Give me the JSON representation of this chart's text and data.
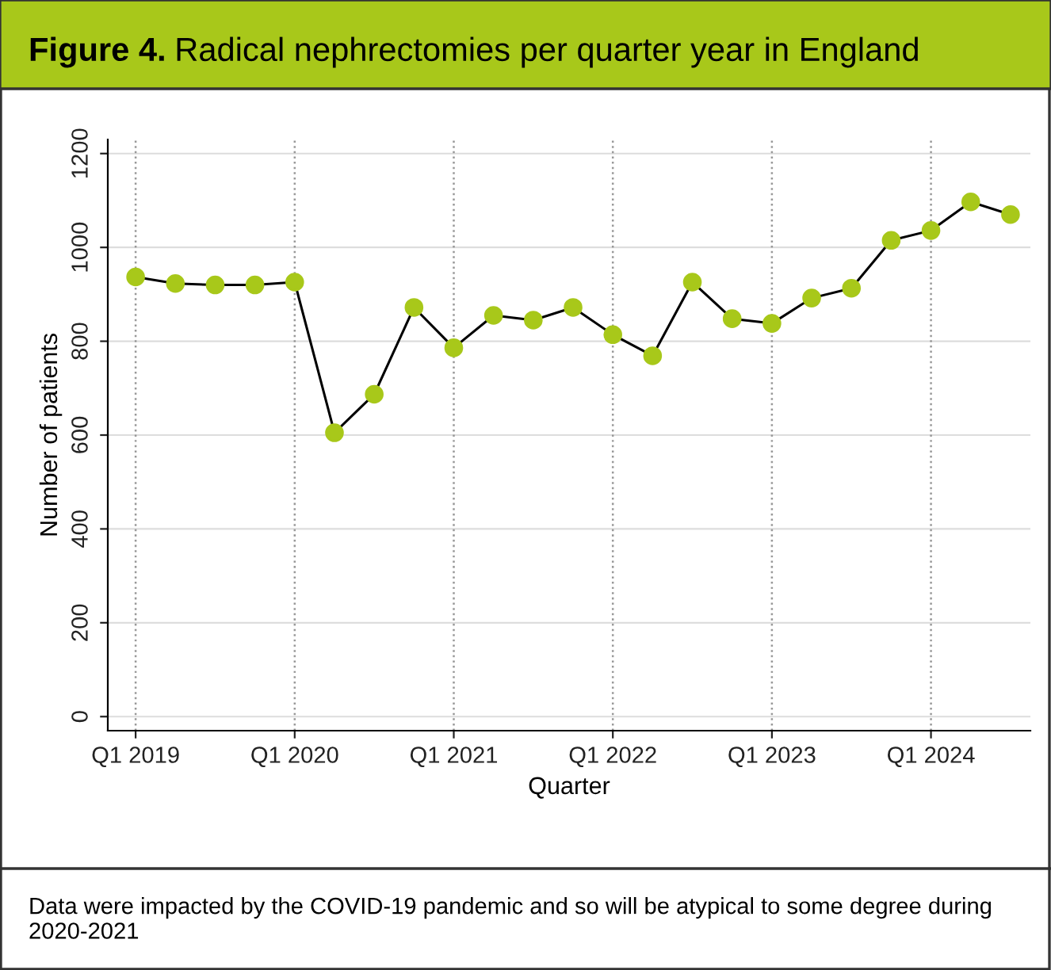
{
  "chart_data": {
    "type": "line",
    "title": "Figure 4. Radical nephrectomies per quarter year in England",
    "xlabel": "Quarter",
    "ylabel": "Number of patients",
    "categories": [
      "Q1 2019",
      null,
      null,
      null,
      "Q1 2020",
      null,
      null,
      null,
      "Q1 2021",
      null,
      null,
      null,
      "Q1 2022",
      null,
      null,
      null,
      "Q1 2023",
      null,
      null,
      null,
      "Q1 2024",
      null,
      null
    ],
    "series": [
      {
        "color": "#a8c81a",
        "values": [
          937,
          923,
          920,
          920,
          926,
          605,
          687,
          872,
          786,
          855,
          845,
          872,
          814,
          769,
          926,
          848,
          838,
          892,
          913,
          1015,
          1036,
          1097,
          1070
        ]
      }
    ],
    "ylim": [
      -30,
      1230
    ],
    "yticks": [
      0,
      200,
      400,
      600,
      800,
      1000,
      1200
    ],
    "grid": true,
    "marker": "circle",
    "line_style": "solid",
    "annotations": [
      "Data were impacted by the COVID-19 pandemic and so will be atypical to some degree during 2020-2021"
    ]
  }
}
